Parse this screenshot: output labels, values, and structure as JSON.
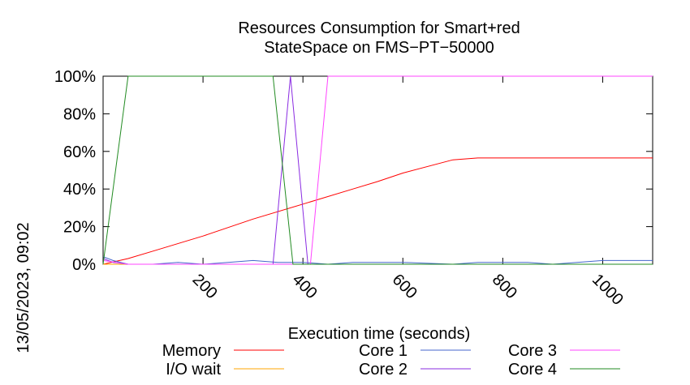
{
  "chart_data": {
    "type": "line",
    "title_lines": [
      "Resources Consumption for Smart+red",
      "StateSpace on FMS−PT−50000"
    ],
    "xlabel": "Execution time (seconds)",
    "ylabel": "",
    "side_label": "13/05/2023, 09:02",
    "xlim": [
      0,
      1100
    ],
    "ylim": [
      0,
      100
    ],
    "x_ticks": [
      200,
      400,
      600,
      800,
      1000
    ],
    "x_tick_labels": [
      "200",
      "400",
      "600",
      "800",
      "1000"
    ],
    "y_ticks": [
      0,
      20,
      40,
      60,
      80,
      100
    ],
    "y_tick_labels": [
      "0%",
      "20%",
      "40%",
      "60%",
      "80%",
      "100%"
    ],
    "grid": false,
    "legend_position": "bottom",
    "series": [
      {
        "name": "Memory",
        "color": "#ff0000",
        "points": [
          [
            0,
            0
          ],
          [
            50,
            3
          ],
          [
            100,
            7
          ],
          [
            200,
            15
          ],
          [
            300,
            24
          ],
          [
            400,
            32
          ],
          [
            500,
            40
          ],
          [
            550,
            44
          ],
          [
            600,
            48.5
          ],
          [
            700,
            55.5
          ],
          [
            750,
            56.5
          ],
          [
            800,
            56.5
          ],
          [
            900,
            56.5
          ],
          [
            1000,
            56.5
          ],
          [
            1100,
            56.5
          ]
        ]
      },
      {
        "name": "I/O wait",
        "color": "#ffa500",
        "points": [
          [
            0,
            0
          ],
          [
            50,
            0
          ],
          [
            100,
            0
          ],
          [
            200,
            0
          ],
          [
            300,
            0
          ],
          [
            400,
            0
          ],
          [
            500,
            0
          ],
          [
            600,
            0
          ],
          [
            700,
            0
          ],
          [
            800,
            0
          ],
          [
            900,
            0
          ],
          [
            1000,
            0
          ],
          [
            1100,
            0
          ]
        ]
      },
      {
        "name": "Core 1",
        "color": "#4466cc",
        "points": [
          [
            0,
            4
          ],
          [
            20,
            2
          ],
          [
            50,
            0
          ],
          [
            100,
            0
          ],
          [
            150,
            1
          ],
          [
            200,
            0
          ],
          [
            250,
            1
          ],
          [
            300,
            2
          ],
          [
            350,
            1
          ],
          [
            400,
            1
          ],
          [
            450,
            0
          ],
          [
            500,
            1
          ],
          [
            600,
            1
          ],
          [
            700,
            0
          ],
          [
            750,
            1
          ],
          [
            850,
            1
          ],
          [
            900,
            0
          ],
          [
            1000,
            2
          ],
          [
            1100,
            2
          ]
        ]
      },
      {
        "name": "Core 2",
        "color": "#8a2be2",
        "points": [
          [
            0,
            3
          ],
          [
            20,
            1
          ],
          [
            50,
            0
          ],
          [
            330,
            0
          ],
          [
            340,
            0
          ],
          [
            375,
            100
          ],
          [
            410,
            0
          ],
          [
            450,
            0
          ],
          [
            1100,
            0
          ]
        ]
      },
      {
        "name": "Core 3",
        "color": "#ff44ff",
        "points": [
          [
            0,
            2
          ],
          [
            50,
            0
          ],
          [
            400,
            0
          ],
          [
            415,
            0
          ],
          [
            450,
            100
          ],
          [
            1100,
            100
          ]
        ]
      },
      {
        "name": "Core 4",
        "color": "#228b22",
        "points": [
          [
            0,
            0
          ],
          [
            50,
            100
          ],
          [
            340,
            100
          ],
          [
            380,
            0
          ],
          [
            1100,
            0
          ]
        ]
      }
    ]
  }
}
